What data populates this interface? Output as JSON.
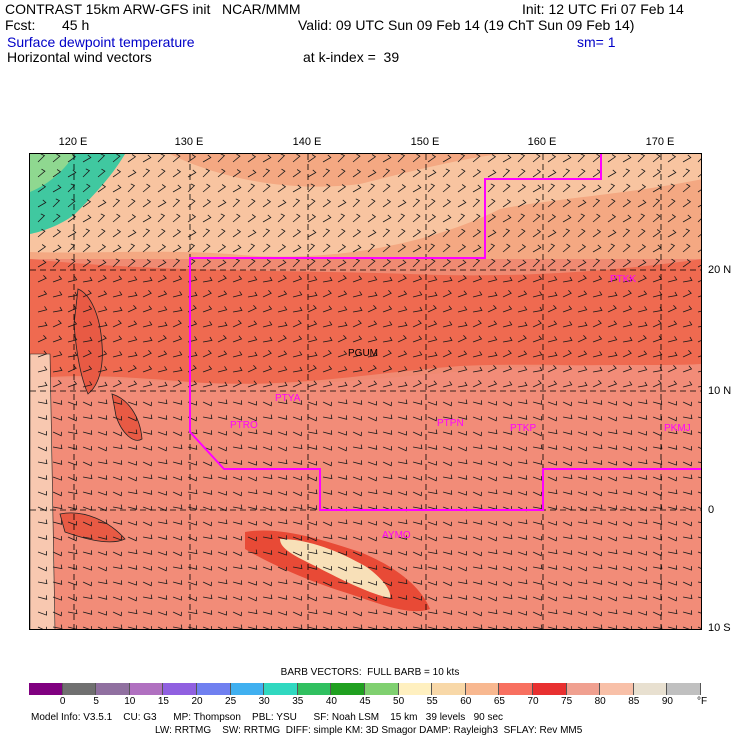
{
  "header": {
    "title": "CONTRAST 15km ARW-GFS init   NCAR/MMM",
    "init": "Init: 12 UTC Fri 07 Feb 14",
    "fcst_label": "Fcst:",
    "fcst_value": "45 h",
    "valid": "Valid: 09 UTC Sun 09 Feb 14 (19 ChT Sun 09 Feb 14)",
    "field": "Surface dewpoint temperature",
    "smoothing": "sm= 1",
    "field2": "Horizontal wind vectors",
    "level": "at k-index =  39"
  },
  "map": {
    "lon_labels": [
      "120 E",
      "130 E",
      "140 E",
      "150 E",
      "160 E",
      "170 E"
    ],
    "lat_labels": [
      "20 N",
      "10 N",
      "0",
      "10 S"
    ],
    "stations": [
      "PTKK",
      "PGUM",
      "PTYA",
      "PTRO",
      "PTPN",
      "PTKP",
      "PKMJ",
      "AYMO"
    ],
    "boundary_color": "#ff00ff"
  },
  "legend": {
    "barb_text": "BARB VECTORS:  FULL BARB = 10 kts",
    "unit": "°F",
    "ticks": [
      "0",
      "5",
      "10",
      "15",
      "20",
      "25",
      "30",
      "35",
      "40",
      "45",
      "50",
      "55",
      "60",
      "65",
      "70",
      "75",
      "80",
      "85",
      "90"
    ],
    "colors": [
      "#800080",
      "#707070",
      "#9070a0",
      "#b070c0",
      "#9060e0",
      "#7080f0",
      "#40b0f0",
      "#30d8c0",
      "#30c060",
      "#20a020",
      "#80d070",
      "#fff0c0",
      "#f8d8a8",
      "#f8b890",
      "#f87060",
      "#e83030",
      "#f0a090",
      "#f8c0a8",
      "#e8e0d0",
      "#c0c0c0"
    ]
  },
  "footer": {
    "line1": "Model Info: V3.5.1    CU: G3      MP: Thompson    PBL: YSU      SF: Noah LSM    15 km   39 levels   90 sec",
    "line2": "LW: RRTMG    SW: RRTMG  DIFF: simple KM: 3D Smagor DAMP: Rayleigh3  SFLAY: Rev MM5"
  }
}
